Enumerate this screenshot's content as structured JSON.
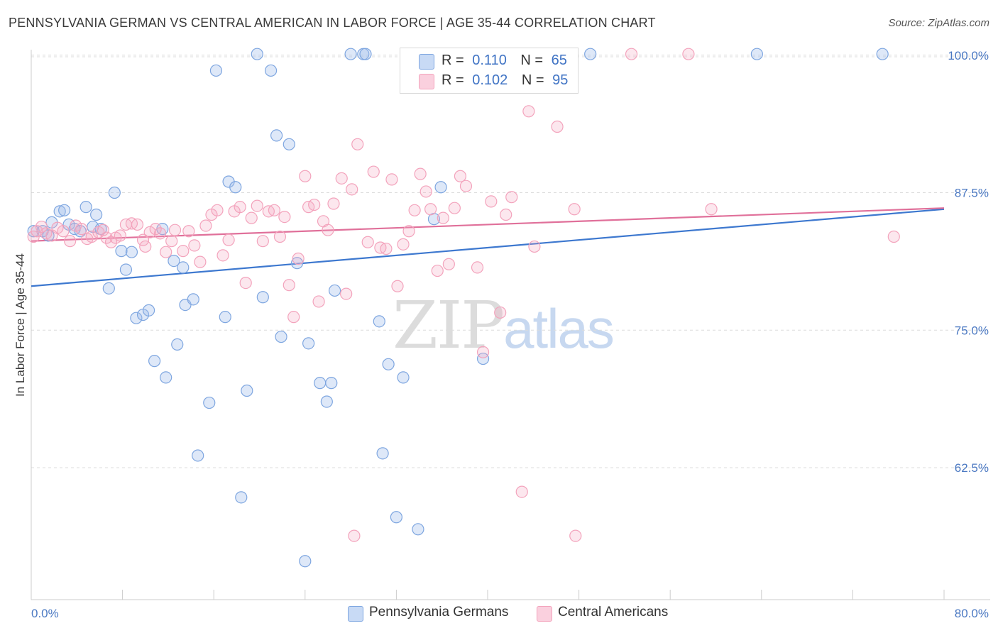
{
  "title": "PENNSYLVANIA GERMAN VS CENTRAL AMERICAN IN LABOR FORCE | AGE 35-44 CORRELATION CHART",
  "source": "Source: ZipAtlas.com",
  "watermark": {
    "part1": "ZIP",
    "part2": "atlas"
  },
  "legend": {
    "blue": {
      "r_label": "R =",
      "r_value": "0.110",
      "n_label": "N =",
      "n_value": "65",
      "color": "#a9c4ee"
    },
    "pink": {
      "r_label": "R =",
      "r_value": "0.102",
      "n_label": "N =",
      "n_value": "95",
      "color": "#f6b8cc"
    }
  },
  "bottom_legend": {
    "blue_label": "Pennsylvania Germans",
    "pink_label": "Central Americans"
  },
  "chart_data": {
    "type": "scatter",
    "ylabel": "In Labor Force | Age 35-44",
    "xlim": [
      0,
      80
    ],
    "ylim": [
      50.5,
      100.5
    ],
    "x_tick_labels": [
      "0.0%",
      "80.0%"
    ],
    "y_ticks": [
      62.5,
      75.0,
      87.5,
      100.0
    ],
    "y_tick_labels": [
      "62.5%",
      "75.0%",
      "87.5%",
      "100.0%"
    ],
    "grid": "horizontal dashed",
    "series": [
      {
        "name": "Pennsylvania Germans",
        "color": "#7ea6e0",
        "line_color": "#3d78cf",
        "trend": {
          "x0": 0,
          "y0": 79.0,
          "x1": 80,
          "y1": 86.0
        },
        "points": [
          [
            0.2,
            84.0
          ],
          [
            1.0,
            84.0
          ],
          [
            1.5,
            83.6
          ],
          [
            1.8,
            84.8
          ],
          [
            2.5,
            85.8
          ],
          [
            2.9,
            85.9
          ],
          [
            3.3,
            84.6
          ],
          [
            3.8,
            84.2
          ],
          [
            4.3,
            84.0
          ],
          [
            4.8,
            86.2
          ],
          [
            5.4,
            84.4
          ],
          [
            5.7,
            85.5
          ],
          [
            6.1,
            84.2
          ],
          [
            6.8,
            78.8
          ],
          [
            7.3,
            87.5
          ],
          [
            7.9,
            82.2
          ],
          [
            8.3,
            80.5
          ],
          [
            8.8,
            82.1
          ],
          [
            9.2,
            76.1
          ],
          [
            9.8,
            76.4
          ],
          [
            10.3,
            76.8
          ],
          [
            10.8,
            72.2
          ],
          [
            11.5,
            84.2
          ],
          [
            11.8,
            70.7
          ],
          [
            12.5,
            81.3
          ],
          [
            12.8,
            73.7
          ],
          [
            13.3,
            80.7
          ],
          [
            13.5,
            77.3
          ],
          [
            14.2,
            77.8
          ],
          [
            14.6,
            63.6
          ],
          [
            15.6,
            68.4
          ],
          [
            16.2,
            98.6
          ],
          [
            17.0,
            76.2
          ],
          [
            17.3,
            88.5
          ],
          [
            17.9,
            88.0
          ],
          [
            18.4,
            59.8
          ],
          [
            18.9,
            69.5
          ],
          [
            19.8,
            100.1
          ],
          [
            20.3,
            78.0
          ],
          [
            21.0,
            98.6
          ],
          [
            21.5,
            92.7
          ],
          [
            21.9,
            74.4
          ],
          [
            22.6,
            91.9
          ],
          [
            23.3,
            81.1
          ],
          [
            24.0,
            54.0
          ],
          [
            24.3,
            73.8
          ],
          [
            25.3,
            70.2
          ],
          [
            25.9,
            68.5
          ],
          [
            26.3,
            70.2
          ],
          [
            26.6,
            78.6
          ],
          [
            28.0,
            100.1
          ],
          [
            29.1,
            100.1
          ],
          [
            29.3,
            100.1
          ],
          [
            30.5,
            75.8
          ],
          [
            30.8,
            63.8
          ],
          [
            31.3,
            71.9
          ],
          [
            32.0,
            58.0
          ],
          [
            32.6,
            70.7
          ],
          [
            33.9,
            56.9
          ],
          [
            35.3,
            85.1
          ],
          [
            35.9,
            88.0
          ],
          [
            39.6,
            72.4
          ],
          [
            49.0,
            100.1
          ],
          [
            63.6,
            100.1
          ],
          [
            74.6,
            100.1
          ]
        ]
      },
      {
        "name": "Central Americans",
        "color": "#f3a3bc",
        "line_color": "#e0709a",
        "trend": {
          "x0": 0,
          "y0": 83.1,
          "x1": 80,
          "y1": 86.1
        },
        "points": [
          [
            0.2,
            83.5
          ],
          [
            0.5,
            84.0
          ],
          [
            0.9,
            84.4
          ],
          [
            1.3,
            83.8
          ],
          [
            1.8,
            83.6
          ],
          [
            2.3,
            84.3
          ],
          [
            2.8,
            84.0
          ],
          [
            3.4,
            83.1
          ],
          [
            3.9,
            84.5
          ],
          [
            4.4,
            84.2
          ],
          [
            4.9,
            83.3
          ],
          [
            5.3,
            83.5
          ],
          [
            5.9,
            83.9
          ],
          [
            6.3,
            84.1
          ],
          [
            6.6,
            83.4
          ],
          [
            7.0,
            83.0
          ],
          [
            7.4,
            83.4
          ],
          [
            7.8,
            83.6
          ],
          [
            8.3,
            84.6
          ],
          [
            8.8,
            84.7
          ],
          [
            9.3,
            84.6
          ],
          [
            9.8,
            83.2
          ],
          [
            10.0,
            82.6
          ],
          [
            10.4,
            83.9
          ],
          [
            10.9,
            84.2
          ],
          [
            11.3,
            83.8
          ],
          [
            11.8,
            82.1
          ],
          [
            12.3,
            83.1
          ],
          [
            12.6,
            84.1
          ],
          [
            13.3,
            82.2
          ],
          [
            13.8,
            84.0
          ],
          [
            14.3,
            82.7
          ],
          [
            14.8,
            81.2
          ],
          [
            15.3,
            84.5
          ],
          [
            15.8,
            85.5
          ],
          [
            16.3,
            85.9
          ],
          [
            16.8,
            81.8
          ],
          [
            17.3,
            83.2
          ],
          [
            17.8,
            85.8
          ],
          [
            18.3,
            86.2
          ],
          [
            18.8,
            79.3
          ],
          [
            19.3,
            85.2
          ],
          [
            19.8,
            86.3
          ],
          [
            20.3,
            83.1
          ],
          [
            20.8,
            85.8
          ],
          [
            21.3,
            85.9
          ],
          [
            21.8,
            83.5
          ],
          [
            22.2,
            85.3
          ],
          [
            22.6,
            79.1
          ],
          [
            23.0,
            76.2
          ],
          [
            23.4,
            81.5
          ],
          [
            24.0,
            89.0
          ],
          [
            24.3,
            86.2
          ],
          [
            24.8,
            86.4
          ],
          [
            25.2,
            77.6
          ],
          [
            25.6,
            84.9
          ],
          [
            26.0,
            84.1
          ],
          [
            26.5,
            86.5
          ],
          [
            27.2,
            88.8
          ],
          [
            27.6,
            78.3
          ],
          [
            28.1,
            87.8
          ],
          [
            28.6,
            91.9
          ],
          [
            29.5,
            83.0
          ],
          [
            30.0,
            89.4
          ],
          [
            30.6,
            82.5
          ],
          [
            31.1,
            82.4
          ],
          [
            31.6,
            88.7
          ],
          [
            32.1,
            79.0
          ],
          [
            32.6,
            82.8
          ],
          [
            33.1,
            84.0
          ],
          [
            33.6,
            85.9
          ],
          [
            34.1,
            89.2
          ],
          [
            34.6,
            87.6
          ],
          [
            35.0,
            86.0
          ],
          [
            35.6,
            80.4
          ],
          [
            36.1,
            85.2
          ],
          [
            36.6,
            81.0
          ],
          [
            37.1,
            86.1
          ],
          [
            37.6,
            89.0
          ],
          [
            38.1,
            88.1
          ],
          [
            39.1,
            80.7
          ],
          [
            39.6,
            73.0
          ],
          [
            40.3,
            86.7
          ],
          [
            41.1,
            76.6
          ],
          [
            41.6,
            85.5
          ],
          [
            42.1,
            87.1
          ],
          [
            43.0,
            60.3
          ],
          [
            43.6,
            94.9
          ],
          [
            44.1,
            82.6
          ],
          [
            46.1,
            93.5
          ],
          [
            47.6,
            86.0
          ],
          [
            52.6,
            100.1
          ],
          [
            57.6,
            100.1
          ],
          [
            59.6,
            86.0
          ],
          [
            75.6,
            83.5
          ]
        ]
      }
    ],
    "extra_pink_points": [
      [
        28.3,
        56.3
      ],
      [
        47.7,
        56.3
      ]
    ]
  }
}
